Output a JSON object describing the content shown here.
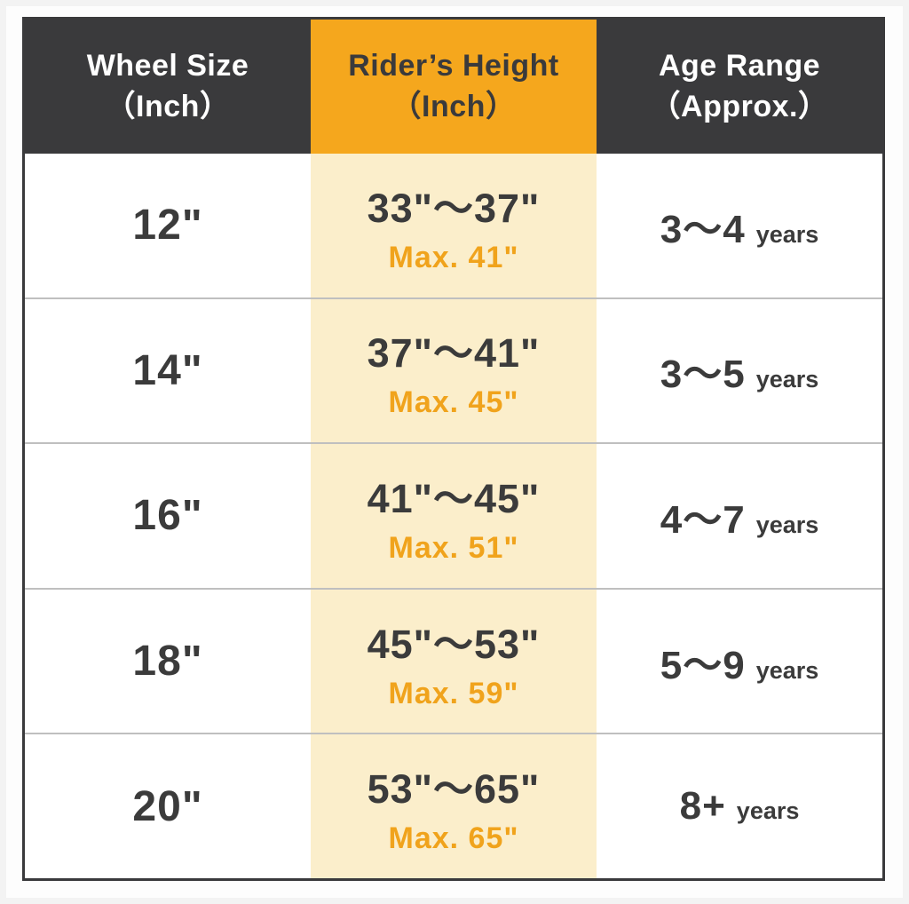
{
  "colors": {
    "header_dark": "#3a3a3c",
    "accent_orange": "#f5a71d",
    "column_cream": "#fbeecb",
    "max_text_orange": "#f0a31c",
    "text_dark": "#3b3b3b",
    "divider_gray": "#bfbfbf"
  },
  "table": {
    "headers": [
      {
        "line1": "Wheel Size",
        "line2": "（Inch）"
      },
      {
        "line1": "Rider’s Height",
        "line2": "（Inch）"
      },
      {
        "line1": "Age Range",
        "line2": "（Approx.）"
      }
    ],
    "rows": [
      {
        "wheel": "12\"",
        "height_range": "33\"～37\"",
        "height_max": "Max. 41\"",
        "age_range": "3～4",
        "age_unit": "years"
      },
      {
        "wheel": "14\"",
        "height_range": "37\"～41\"",
        "height_max": "Max. 45\"",
        "age_range": "3～5",
        "age_unit": "years"
      },
      {
        "wheel": "16\"",
        "height_range": "41\"～45\"",
        "height_max": "Max. 51\"",
        "age_range": "4～7",
        "age_unit": "years"
      },
      {
        "wheel": "18\"",
        "height_range": "45\"～53\"",
        "height_max": "Max. 59\"",
        "age_range": "5～9",
        "age_unit": "years"
      },
      {
        "wheel": "20\"",
        "height_range": "53\"～65\"",
        "height_max": "Max. 65\"",
        "age_range": "8+",
        "age_unit": "years"
      }
    ]
  },
  "chart_data": {
    "type": "table",
    "columns": [
      "Wheel Size（Inch）",
      "Rider’s Height（Inch）",
      "Age Range（Approx.）"
    ],
    "rows": [
      [
        "12\"",
        "33\"～37\" Max. 41\"",
        "3～4 years"
      ],
      [
        "14\"",
        "37\"～41\" Max. 45\"",
        "3～5 years"
      ],
      [
        "16\"",
        "41\"～45\" Max. 51\"",
        "4～7 years"
      ],
      [
        "18\"",
        "45\"～53\" Max. 59\"",
        "5～9 years"
      ],
      [
        "20\"",
        "53\"～65\" Max. 65\"",
        "8+ years"
      ]
    ],
    "layout_hints": {
      "highlighted_column": "Rider’s Height（Inch）",
      "header_background": "#3a3a3c",
      "highlight_header_background": "#f5a71d",
      "highlight_body_background": "#fbeecb"
    }
  }
}
